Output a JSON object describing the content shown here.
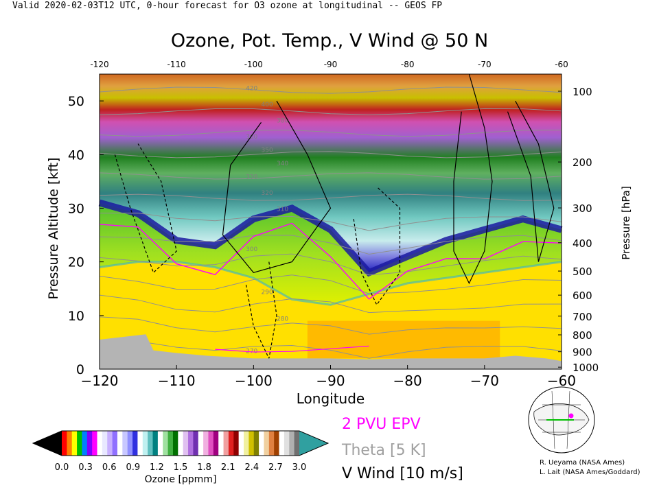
{
  "header_line": "Valid 2020-02-03T12 UTC, 0-hour forecast for O3 ozone at longitudinal -- GEOS FP",
  "chart_data": {
    "type": "heatmap",
    "title": "Ozone, Pot. Temp., V Wind @ 50 N",
    "xlabel": "Longitude",
    "ylabel_left": "Pressure Altitude [kft]",
    "ylabel_right": "Pressure [hPa]",
    "xlim": [
      -120,
      -60
    ],
    "ylim": [
      0,
      55
    ],
    "x_ticks": [
      -120,
      -110,
      -100,
      -90,
      -80,
      -70,
      -60
    ],
    "y_ticks_kft": [
      0,
      10,
      20,
      30,
      40,
      50
    ],
    "pressure_ticks_hPa": [
      100,
      200,
      300,
      400,
      500,
      600,
      700,
      800,
      900,
      1000
    ],
    "colorbar": {
      "label": "Ozone [ppmm]",
      "ticks": [
        "0.0",
        "0.3",
        "0.6",
        "0.9",
        "1.2",
        "1.5",
        "1.8",
        "2.1",
        "2.4",
        "2.7",
        "3.0"
      ],
      "colors": [
        "#000000",
        "#ff0000",
        "#ff8000",
        "#ffff00",
        "#00c000",
        "#0080ff",
        "#8000ff",
        "#ff00ff",
        "#ffffff",
        "#e8e8ff",
        "#c8b0ff",
        "#9070ff",
        "#ffffff",
        "#c8c8ff",
        "#9090ff",
        "#3030e0",
        "#ffffff",
        "#c0f0f0",
        "#60c0c0",
        "#008080",
        "#ffffff",
        "#a0e0a0",
        "#40b040",
        "#007000",
        "#ffffff",
        "#e0c0f0",
        "#b070e0",
        "#7030b0",
        "#ffffff",
        "#f0b0e0",
        "#e050c0",
        "#a00080",
        "#ffffff",
        "#f0a0a0",
        "#e02020",
        "#900000",
        "#ffffff",
        "#f0f0a0",
        "#d0c000",
        "#808000",
        "#ffffff",
        "#f0d0a0",
        "#e08040",
        "#a04000",
        "#ffffff",
        "#e0e0e0",
        "#b0b0b0",
        "#707070",
        "#30a0a0"
      ]
    },
    "ozone_field": {
      "longitude": [
        -120,
        -115,
        -110,
        -105,
        -100,
        -95,
        -90,
        -85,
        -80,
        -75,
        -70,
        -65,
        -60
      ],
      "tropopause_kft": [
        31,
        29,
        24,
        23,
        28,
        30,
        26,
        18,
        21,
        24,
        26,
        28,
        26
      ],
      "low_ozone_top_kft": [
        19,
        20,
        20,
        19,
        17,
        13,
        12,
        14,
        16,
        17,
        18,
        19,
        20
      ]
    },
    "theta_labels_K": [
      "420",
      "400",
      "380",
      "360",
      "350",
      "340",
      "330",
      "320",
      "310",
      "300",
      "290",
      "280",
      "270"
    ],
    "legend": [
      {
        "label": "2 PVU EPV",
        "color": "#ff00ff"
      },
      {
        "label": "Theta [5 K]",
        "color": "#a0a0a0"
      },
      {
        "label": "V Wind [10 m/s]",
        "color": "#000000"
      }
    ],
    "credits": [
      "R. Ueyama (NASA Ames)",
      "L. Lait (NASA Ames/Goddard)"
    ]
  }
}
